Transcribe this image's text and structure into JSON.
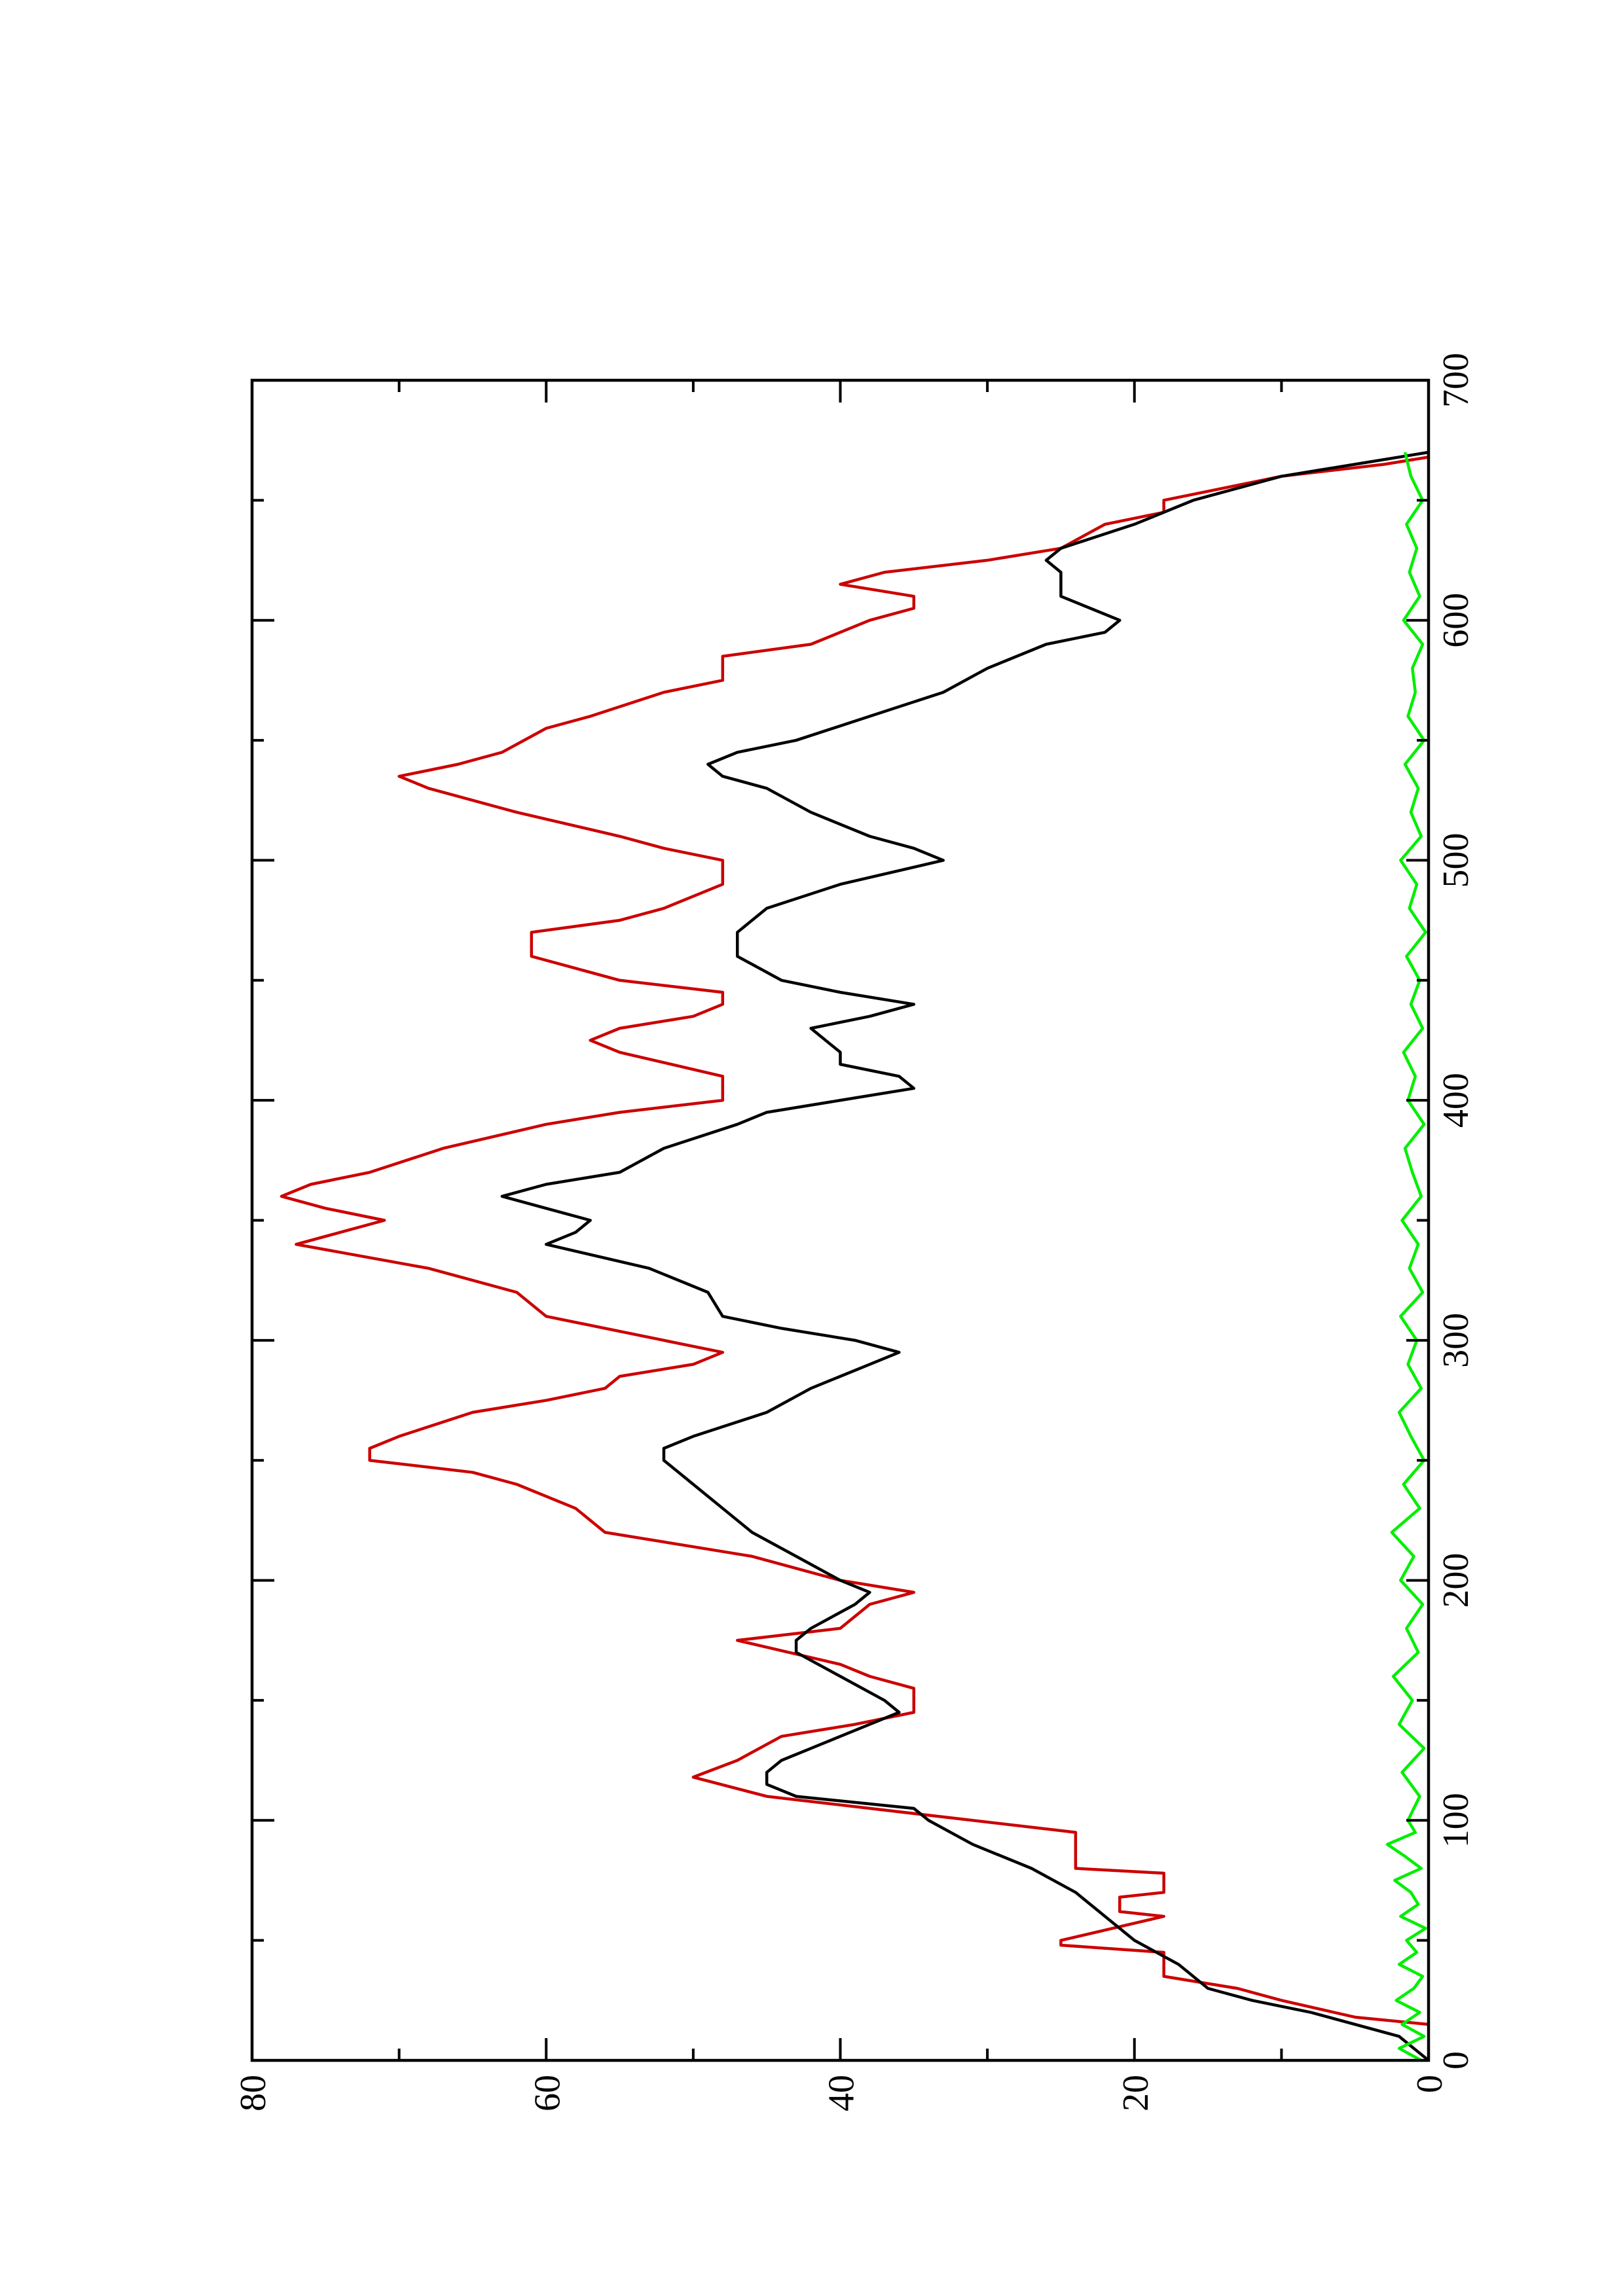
{
  "chart_data": {
    "type": "line",
    "xlim": [
      0,
      700
    ],
    "xticks": [
      0,
      100,
      200,
      300,
      400,
      500,
      600,
      700
    ],
    "xminor_ticks": [
      50,
      150,
      250,
      350,
      450,
      550,
      650
    ],
    "ylim": [
      0,
      80
    ],
    "yticks": [
      0,
      20,
      40,
      60,
      80
    ],
    "yminor_ticks": [
      10,
      30,
      50,
      70
    ],
    "rotated": true,
    "series": [
      {
        "color": "#cc0000",
        "x": [
          15,
          18,
          25,
          30,
          35,
          45,
          48,
          50,
          60,
          62,
          68,
          70,
          78,
          80,
          95,
          110,
          118,
          125,
          135,
          140,
          145,
          155,
          160,
          165,
          175,
          180,
          190,
          195,
          200,
          210,
          220,
          230,
          240,
          245,
          250,
          255,
          260,
          270,
          275,
          280,
          285,
          290,
          295,
          300,
          310,
          320,
          330,
          340,
          345,
          350,
          355,
          360,
          365,
          370,
          380,
          390,
          395,
          400,
          410,
          420,
          425,
          430,
          435,
          440,
          445,
          450,
          455,
          460,
          470,
          475,
          480,
          490,
          500,
          505,
          510,
          520,
          530,
          535,
          540,
          545,
          555,
          560,
          570,
          575,
          585,
          590,
          600,
          605,
          610,
          615,
          620,
          625,
          630,
          640,
          645,
          650,
          655,
          660,
          665,
          668
        ],
        "values": [
          0,
          5,
          10,
          13,
          18,
          18,
          25,
          25,
          18,
          21,
          21,
          18,
          18,
          24,
          24,
          45,
          50,
          47,
          44,
          39,
          35,
          35,
          38,
          40,
          47,
          40,
          38,
          35,
          40,
          46,
          56,
          58,
          62,
          65,
          72,
          72,
          70,
          65,
          60,
          56,
          55,
          50,
          48,
          52,
          60,
          62,
          68,
          77,
          74,
          71,
          75,
          78,
          76,
          72,
          67,
          60,
          55,
          48,
          48,
          55,
          57,
          55,
          50,
          48,
          48,
          55,
          58,
          61,
          61,
          55,
          52,
          48,
          48,
          52,
          55,
          62,
          68,
          70,
          66,
          63,
          60,
          57,
          52,
          48,
          48,
          42,
          38,
          35,
          35,
          40,
          37,
          30,
          25,
          22,
          18,
          18,
          14,
          10,
          3,
          0
        ]
      },
      {
        "color": "#000000",
        "x": [
          0,
          10,
          20,
          25,
          30,
          40,
          50,
          60,
          70,
          80,
          90,
          100,
          105,
          110,
          115,
          120,
          125,
          130,
          140,
          145,
          150,
          160,
          170,
          175,
          180,
          190,
          195,
          200,
          210,
          220,
          230,
          240,
          250,
          255,
          260,
          270,
          280,
          285,
          290,
          295,
          300,
          305,
          310,
          320,
          330,
          340,
          345,
          350,
          355,
          360,
          365,
          370,
          380,
          390,
          395,
          400,
          405,
          410,
          415,
          420,
          430,
          435,
          440,
          445,
          450,
          460,
          470,
          480,
          490,
          500,
          505,
          510,
          520,
          530,
          535,
          540,
          545,
          550,
          560,
          570,
          580,
          590,
          595,
          600,
          605,
          610,
          615,
          620,
          625,
          630,
          640,
          650,
          660,
          665,
          670
        ],
        "values": [
          0,
          2,
          8,
          12,
          15,
          17,
          20,
          22,
          24,
          27,
          31,
          34,
          35,
          43,
          45,
          45,
          44,
          42,
          38,
          36,
          37,
          40,
          43,
          43,
          42,
          39,
          38,
          40,
          43,
          46,
          48,
          50,
          52,
          52,
          50,
          45,
          42,
          40,
          38,
          36,
          39,
          44,
          48,
          49,
          53,
          60,
          58,
          57,
          60,
          63,
          60,
          55,
          52,
          47,
          45,
          40,
          35,
          36,
          40,
          40,
          42,
          38,
          35,
          40,
          44,
          47,
          47,
          45,
          40,
          33,
          35,
          38,
          42,
          45,
          48,
          49,
          47,
          43,
          38,
          33,
          30,
          26,
          22,
          21,
          23,
          25,
          25,
          25,
          26,
          25,
          20,
          16,
          10,
          5,
          0
        ]
      },
      {
        "color": "#00ee00",
        "x": [
          0,
          5,
          10,
          15,
          20,
          25,
          30,
          35,
          40,
          45,
          50,
          55,
          60,
          65,
          70,
          75,
          80,
          85,
          90,
          95,
          100,
          110,
          120,
          130,
          140,
          150,
          160,
          170,
          180,
          190,
          200,
          210,
          220,
          230,
          240,
          250,
          260,
          270,
          280,
          290,
          300,
          310,
          320,
          330,
          340,
          350,
          360,
          370,
          380,
          390,
          400,
          410,
          420,
          430,
          440,
          450,
          460,
          470,
          480,
          490,
          500,
          510,
          520,
          530,
          540,
          550,
          560,
          570,
          580,
          590,
          600,
          610,
          620,
          630,
          640,
          650,
          660,
          670
        ],
        "values": [
          0.5,
          2,
          0.3,
          1.8,
          0.6,
          2.2,
          1,
          0.4,
          2,
          0.8,
          1.5,
          0.2,
          1.9,
          0.7,
          1.2,
          2.3,
          0.5,
          1.6,
          2.8,
          0.9,
          1.4,
          0.6,
          1.8,
          0.3,
          2,
          1.1,
          2.4,
          0.7,
          1.5,
          0.4,
          1.9,
          1,
          2.5,
          0.6,
          1.7,
          0.3,
          1.2,
          2,
          0.5,
          1.4,
          0.8,
          1.9,
          0.4,
          1.3,
          0.7,
          1.8,
          0.5,
          1.1,
          1.6,
          0.3,
          1.4,
          0.9,
          1.7,
          0.4,
          1.2,
          0.6,
          1.5,
          0.2,
          1.3,
          0.8,
          1.9,
          0.5,
          1.2,
          0.7,
          1.6,
          0.3,
          1.4,
          0.9,
          1.1,
          0.4,
          1.7,
          0.6,
          1.3,
          0.8,
          1.5,
          0.4,
          1.2,
          1.6
        ]
      }
    ]
  }
}
